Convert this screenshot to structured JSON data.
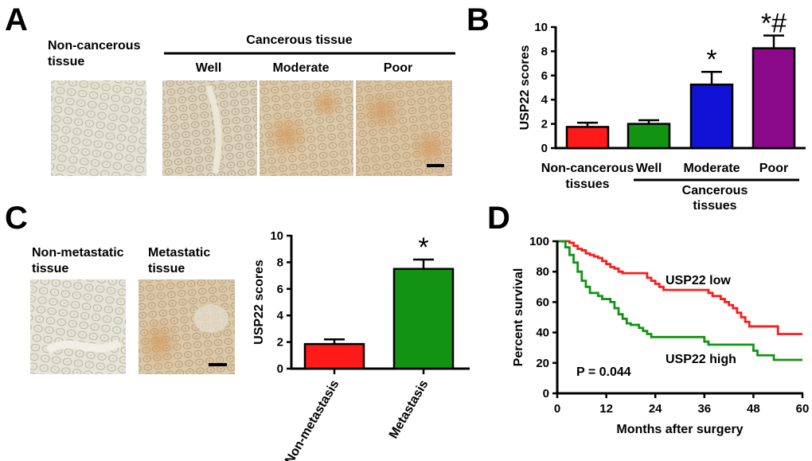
{
  "figure": {
    "panel_labels": [
      "A",
      "B",
      "C",
      "D"
    ],
    "panelA": {
      "left_label": [
        "Non-cancerous",
        "tissue"
      ],
      "group_label": "Cancerous tissue",
      "columns": [
        "Well",
        "Moderate",
        "Poor"
      ]
    },
    "panelC": {
      "left_label": [
        "Non-metastatic",
        "tissue"
      ],
      "right_label": [
        "Metastatic",
        "tissue"
      ]
    }
  },
  "colors": {
    "red": "#ff1a1a",
    "green": "#129412",
    "blue": "#1212d6",
    "purple": "#8a0a8a",
    "tissue_light": "#e2e0cf",
    "tissue_stain": "#d7b48c"
  },
  "chart_data": [
    {
      "id": "B",
      "type": "bar",
      "ylabel": "USP22 scores",
      "ylim": [
        0,
        10
      ],
      "yticks": [
        0,
        2,
        4,
        6,
        8,
        10
      ],
      "categories": [
        [
          "Non-cancerous",
          "tissues"
        ],
        [
          "Well"
        ],
        [
          "Moderate"
        ],
        [
          "Poor"
        ]
      ],
      "values": [
        1.75,
        2.0,
        5.25,
        8.25
      ],
      "errors": [
        0.35,
        0.3,
        1.05,
        1.05
      ],
      "colors": [
        "#ff1a1a",
        "#129412",
        "#1212d6",
        "#8a0a8a"
      ],
      "annotations": [
        "",
        "",
        "*",
        "*#"
      ],
      "group_label": [
        "Cancerous",
        "tissues"
      ]
    },
    {
      "id": "C",
      "type": "bar",
      "ylabel": "USP22 scores",
      "ylim": [
        0,
        10
      ],
      "yticks": [
        0,
        2,
        4,
        6,
        8,
        10
      ],
      "categories": [
        "Non-metastasis",
        "Metastasis"
      ],
      "values": [
        1.85,
        7.5
      ],
      "errors": [
        0.35,
        0.7
      ],
      "colors": [
        "#ff1a1a",
        "#129412"
      ],
      "annotations": [
        "",
        "*"
      ]
    },
    {
      "id": "D",
      "type": "line",
      "step": true,
      "xlabel": "Months after surgery",
      "ylabel": "Percent survival",
      "xlim": [
        0,
        60
      ],
      "ylim": [
        0,
        100
      ],
      "xticks": [
        0,
        12,
        24,
        36,
        48,
        60
      ],
      "yticks": [
        0,
        20,
        40,
        60,
        80,
        100
      ],
      "pvalue": "P = 0.044",
      "series": [
        {
          "name": "USP22 low",
          "color": "#ff1a1a",
          "points": [
            [
              0,
              100
            ],
            [
              3,
              99
            ],
            [
              4,
              97
            ],
            [
              5,
              95
            ],
            [
              6,
              94
            ],
            [
              7,
              92
            ],
            [
              8,
              91
            ],
            [
              9,
              90
            ],
            [
              10,
              89
            ],
            [
              11,
              87
            ],
            [
              12,
              85
            ],
            [
              13,
              83
            ],
            [
              14,
              82
            ],
            [
              15,
              80
            ],
            [
              16,
              79
            ],
            [
              21,
              79
            ],
            [
              22,
              76
            ],
            [
              23,
              74
            ],
            [
              24,
              72
            ],
            [
              25,
              70
            ],
            [
              26,
              68
            ],
            [
              36,
              68
            ],
            [
              37,
              66
            ],
            [
              38,
              64
            ],
            [
              40,
              62
            ],
            [
              41,
              60
            ],
            [
              42,
              58
            ],
            [
              43,
              56
            ],
            [
              44,
              53
            ],
            [
              45,
              50
            ],
            [
              46,
              47
            ],
            [
              47,
              44
            ],
            [
              53,
              44
            ],
            [
              54,
              39
            ],
            [
              60,
              39
            ]
          ]
        },
        {
          "name": "USP22 high",
          "color": "#129412",
          "points": [
            [
              0,
              100
            ],
            [
              2,
              96
            ],
            [
              3,
              91
            ],
            [
              4,
              86
            ],
            [
              5,
              80
            ],
            [
              6,
              74
            ],
            [
              7,
              70
            ],
            [
              8,
              66
            ],
            [
              10,
              64
            ],
            [
              11,
              62
            ],
            [
              13,
              60
            ],
            [
              14,
              56
            ],
            [
              15,
              52
            ],
            [
              16,
              49
            ],
            [
              17,
              46
            ],
            [
              18,
              45
            ],
            [
              20,
              43
            ],
            [
              21,
              41
            ],
            [
              22,
              39
            ],
            [
              23,
              37
            ],
            [
              35,
              37
            ],
            [
              36,
              34
            ],
            [
              37,
              32
            ],
            [
              47,
              32
            ],
            [
              48,
              28
            ],
            [
              49,
              25
            ],
            [
              53,
              22
            ],
            [
              60,
              22
            ]
          ]
        }
      ]
    }
  ]
}
